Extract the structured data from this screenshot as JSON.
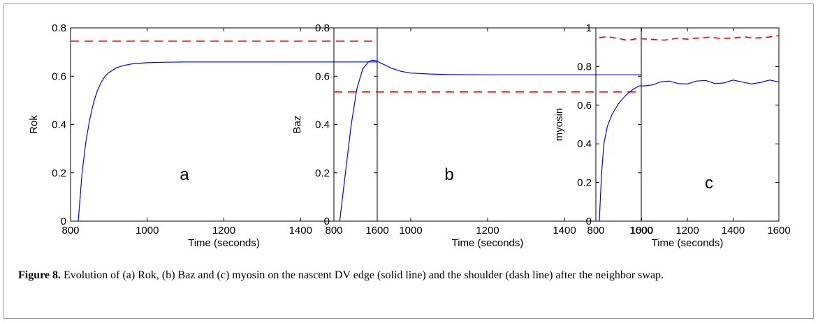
{
  "figure_label": "Figure 8.",
  "caption": "Evolution of (a) Rok, (b) Baz and (c) myosin on the nascent DV edge (solid line) and the shoulder (dash line) after the neighbor swap.",
  "colors": {
    "solid": "#0000ff",
    "dash": "#ff0000",
    "axis": "#000000"
  },
  "chart_data": [
    {
      "type": "line",
      "panel_letter": "a",
      "xlabel": "Time (seconds)",
      "ylabel": "Rok",
      "xlim": [
        800,
        1600
      ],
      "ylim": [
        0,
        0.8
      ],
      "xticks": [
        800,
        1000,
        1200,
        1400,
        1600
      ],
      "yticks": [
        0,
        0.2,
        0.4,
        0.6,
        0.8
      ],
      "ytick_labels": [
        "0",
        "0.2",
        "0.4",
        "0.6",
        "0.8"
      ],
      "grid": false,
      "series": [
        {
          "style": "solid",
          "color": "#0000ff",
          "x": [
            820,
            830,
            840,
            850,
            860,
            870,
            880,
            890,
            900,
            920,
            940,
            960,
            980,
            1000,
            1050,
            1100,
            1200,
            1400,
            1600
          ],
          "y": [
            0,
            0.2,
            0.33,
            0.42,
            0.49,
            0.54,
            0.575,
            0.6,
            0.615,
            0.635,
            0.645,
            0.651,
            0.654,
            0.656,
            0.658,
            0.659,
            0.659,
            0.659,
            0.659
          ]
        },
        {
          "style": "dashed",
          "color": "#ff0000",
          "x": [
            800,
            1600
          ],
          "y": [
            0.745,
            0.745
          ]
        }
      ]
    },
    {
      "type": "line",
      "panel_letter": "b",
      "xlabel": "Time (seconds)",
      "ylabel": "Baz",
      "xlim": [
        800,
        1600
      ],
      "ylim": [
        0,
        0.8
      ],
      "xticks": [
        800,
        1000,
        1200,
        1400,
        1600
      ],
      "yticks": [
        0,
        0.2,
        0.4,
        0.6,
        0.8
      ],
      "ytick_labels": [
        "0",
        "0.2",
        "0.4",
        "0.6",
        "0.8"
      ],
      "grid": false,
      "series": [
        {
          "style": "solid",
          "color": "#0000ff",
          "x": [
            815,
            830,
            845,
            860,
            875,
            890,
            900,
            910,
            925,
            950,
            975,
            1000,
            1050,
            1100,
            1200,
            1400,
            1600
          ],
          "y": [
            0,
            0.2,
            0.4,
            0.55,
            0.63,
            0.66,
            0.667,
            0.664,
            0.652,
            0.633,
            0.62,
            0.613,
            0.609,
            0.607,
            0.606,
            0.606,
            0.606
          ]
        },
        {
          "style": "dashed",
          "color": "#ff0000",
          "x": [
            800,
            1600
          ],
          "y": [
            0.535,
            0.535
          ]
        }
      ]
    },
    {
      "type": "line",
      "panel_letter": "c",
      "xlabel": "Time (seconds)",
      "ylabel": "myosin",
      "xlim": [
        800,
        1600
      ],
      "ylim": [
        0,
        1
      ],
      "xticks": [
        800,
        1000,
        1200,
        1400,
        1600
      ],
      "yticks": [
        0,
        0.2,
        0.4,
        0.6,
        0.8,
        1
      ],
      "ytick_labels": [
        "0",
        "0.2",
        "0.4",
        "0.6",
        "0.8",
        "1"
      ],
      "grid": false,
      "series": [
        {
          "style": "solid",
          "color": "#0000ff",
          "x": [
            815,
            825,
            835,
            850,
            870,
            900,
            930,
            960,
            990,
            1010,
            1050,
            1080,
            1120,
            1160,
            1200,
            1240,
            1280,
            1320,
            1360,
            1400,
            1440,
            1480,
            1520,
            1560,
            1600
          ],
          "y": [
            0,
            0.25,
            0.4,
            0.49,
            0.55,
            0.61,
            0.65,
            0.68,
            0.7,
            0.7,
            0.705,
            0.72,
            0.725,
            0.712,
            0.71,
            0.725,
            0.728,
            0.712,
            0.715,
            0.73,
            0.72,
            0.71,
            0.718,
            0.73,
            0.72
          ]
        },
        {
          "style": "dashed",
          "color": "#ff0000",
          "x": [
            815,
            850,
            900,
            940,
            980,
            1050,
            1100,
            1150,
            1200,
            1250,
            1300,
            1350,
            1400,
            1450,
            1500,
            1550,
            1600
          ],
          "y": [
            0.95,
            0.955,
            0.945,
            0.935,
            0.945,
            0.94,
            0.937,
            0.945,
            0.942,
            0.948,
            0.952,
            0.945,
            0.948,
            0.953,
            0.948,
            0.952,
            0.96
          ]
        }
      ]
    }
  ]
}
